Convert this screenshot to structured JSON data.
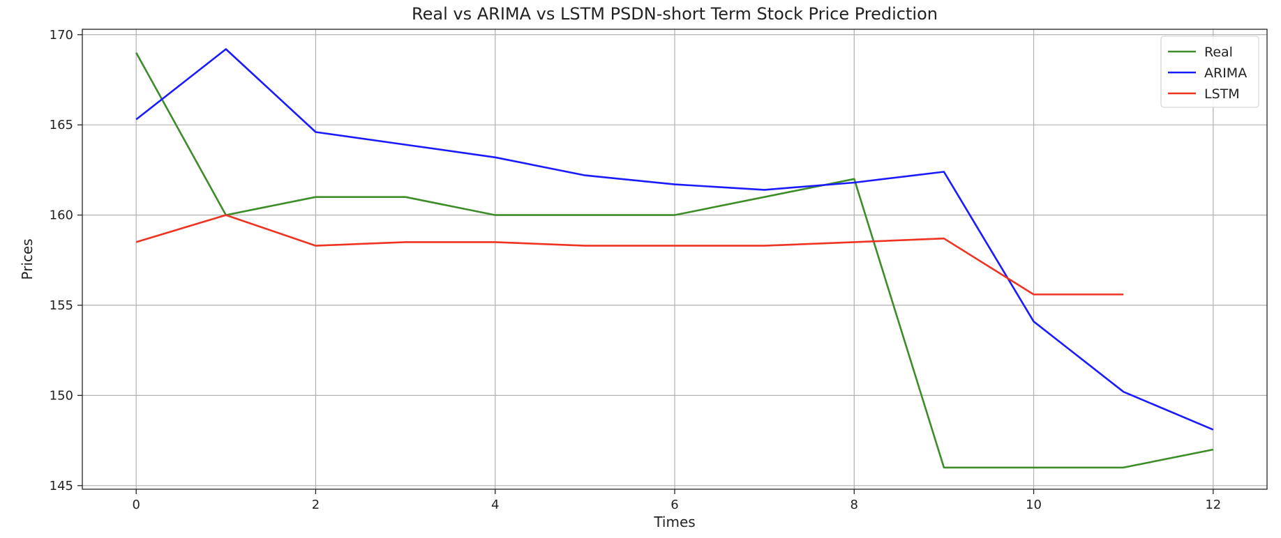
{
  "chart_data": {
    "type": "line",
    "title": "Real vs ARIMA vs LSTM PSDN-short Term Stock Price Prediction",
    "xlabel": "Times",
    "ylabel": "Prices",
    "xlim": [
      -0.6,
      12.6
    ],
    "ylim": [
      144.8,
      170.3
    ],
    "xticks": [
      0,
      2,
      4,
      6,
      8,
      10,
      12
    ],
    "yticks": [
      145,
      150,
      155,
      160,
      165,
      170
    ],
    "grid": true,
    "legend_position": "top-right",
    "series": [
      {
        "name": "Real",
        "color": "#3c8c28",
        "x": [
          0,
          1,
          2,
          3,
          4,
          5,
          6,
          7,
          8,
          9,
          10,
          11,
          12
        ],
        "values": [
          169,
          160,
          161,
          161,
          160,
          160,
          160,
          161,
          162,
          146,
          146,
          146,
          147
        ]
      },
      {
        "name": "ARIMA",
        "color": "#1a1aff",
        "x": [
          0,
          1,
          2,
          3,
          4,
          5,
          6,
          7,
          8,
          9,
          10,
          11,
          12
        ],
        "values": [
          165.3,
          169.2,
          164.6,
          163.9,
          163.2,
          162.2,
          161.7,
          161.4,
          161.8,
          162.4,
          154.1,
          150.2,
          148.1
        ]
      },
      {
        "name": "LSTM",
        "color": "#ee3322",
        "x": [
          0,
          1,
          2,
          3,
          4,
          5,
          6,
          7,
          8,
          9,
          10,
          11
        ],
        "values": [
          158.5,
          160.0,
          158.3,
          158.5,
          158.5,
          158.3,
          158.3,
          158.3,
          158.5,
          158.7,
          155.6,
          155.6
        ]
      }
    ]
  }
}
